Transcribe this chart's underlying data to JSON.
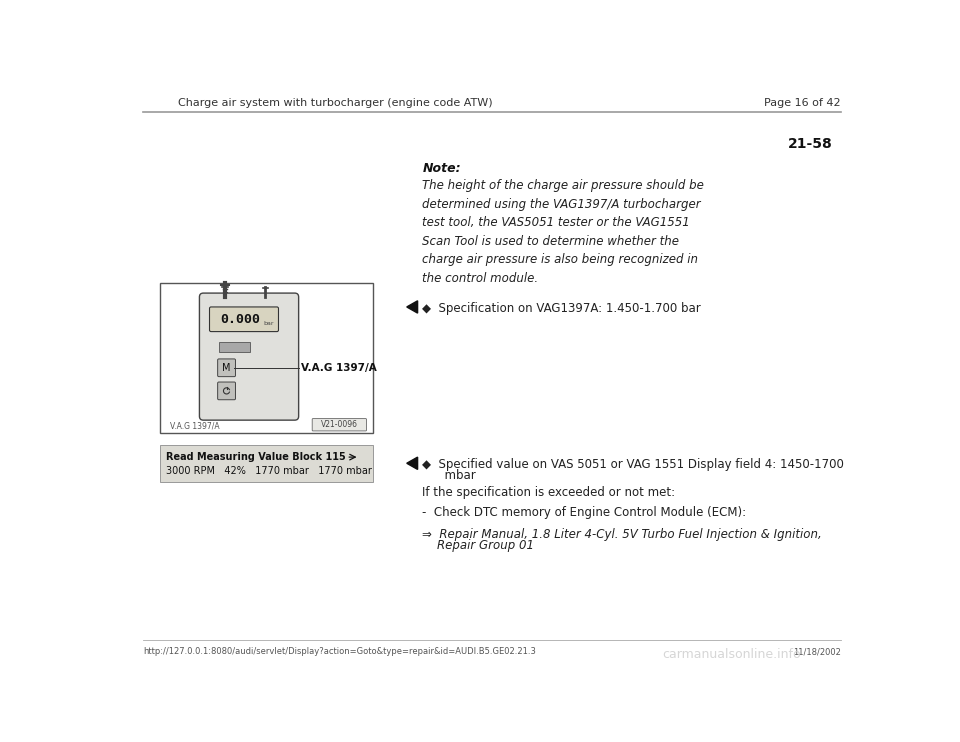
{
  "bg_color": "#ffffff",
  "header_text": "Charge air system with turbocharger (engine code ATW)",
  "page_text": "Page 16 of 42",
  "section_number": "21-58",
  "note_bold": "Note:",
  "note_body": "The height of the charge air pressure should be\ndetermined using the VAG1397/A turbocharger\ntest tool, the VAS5051 tester or the VAG1551\nScan Tool is used to determine whether the\ncharge air pressure is also being recognized in\nthe control module.",
  "spec1_bullet": "◆  Specification on VAG1397A: 1.450-1.700 bar",
  "spec2_line1": "◆  Specified value on VAS 5051 or VAG 1551 Display field 4: 1450-1700",
  "spec2_line2": "      mbar",
  "if_spec_text": "If the specification is exceeded or not met:",
  "check_dtc": "-  Check DTC memory of Engine Control Module (ECM):",
  "repair_manual_line1": "⇒  Repair Manual, 1.8 Liter 4-Cyl. 5V Turbo Fuel Injection & Ignition,",
  "repair_manual_line2": "    Repair Group 01",
  "footer_url": "http://127.0.0.1:8080/audi/servlet/Display?action=Goto&type=repair&id=AUDI.B5.GE02.21.3",
  "footer_date": "11/18/2002",
  "footer_watermark": "carmanualsonline.info",
  "read_block_title": "Read Measuring Value Block 115",
  "read_block_data": "3000 RPM   42%   1770 mbar   1770 mbar",
  "vag_label": "V.A.G 1397/A",
  "vag_bottom_label": "V.A.G 1397/A",
  "v21_label": "V21-0096",
  "display_text": "0.000",
  "display_unit": "bar",
  "m_button": "M"
}
